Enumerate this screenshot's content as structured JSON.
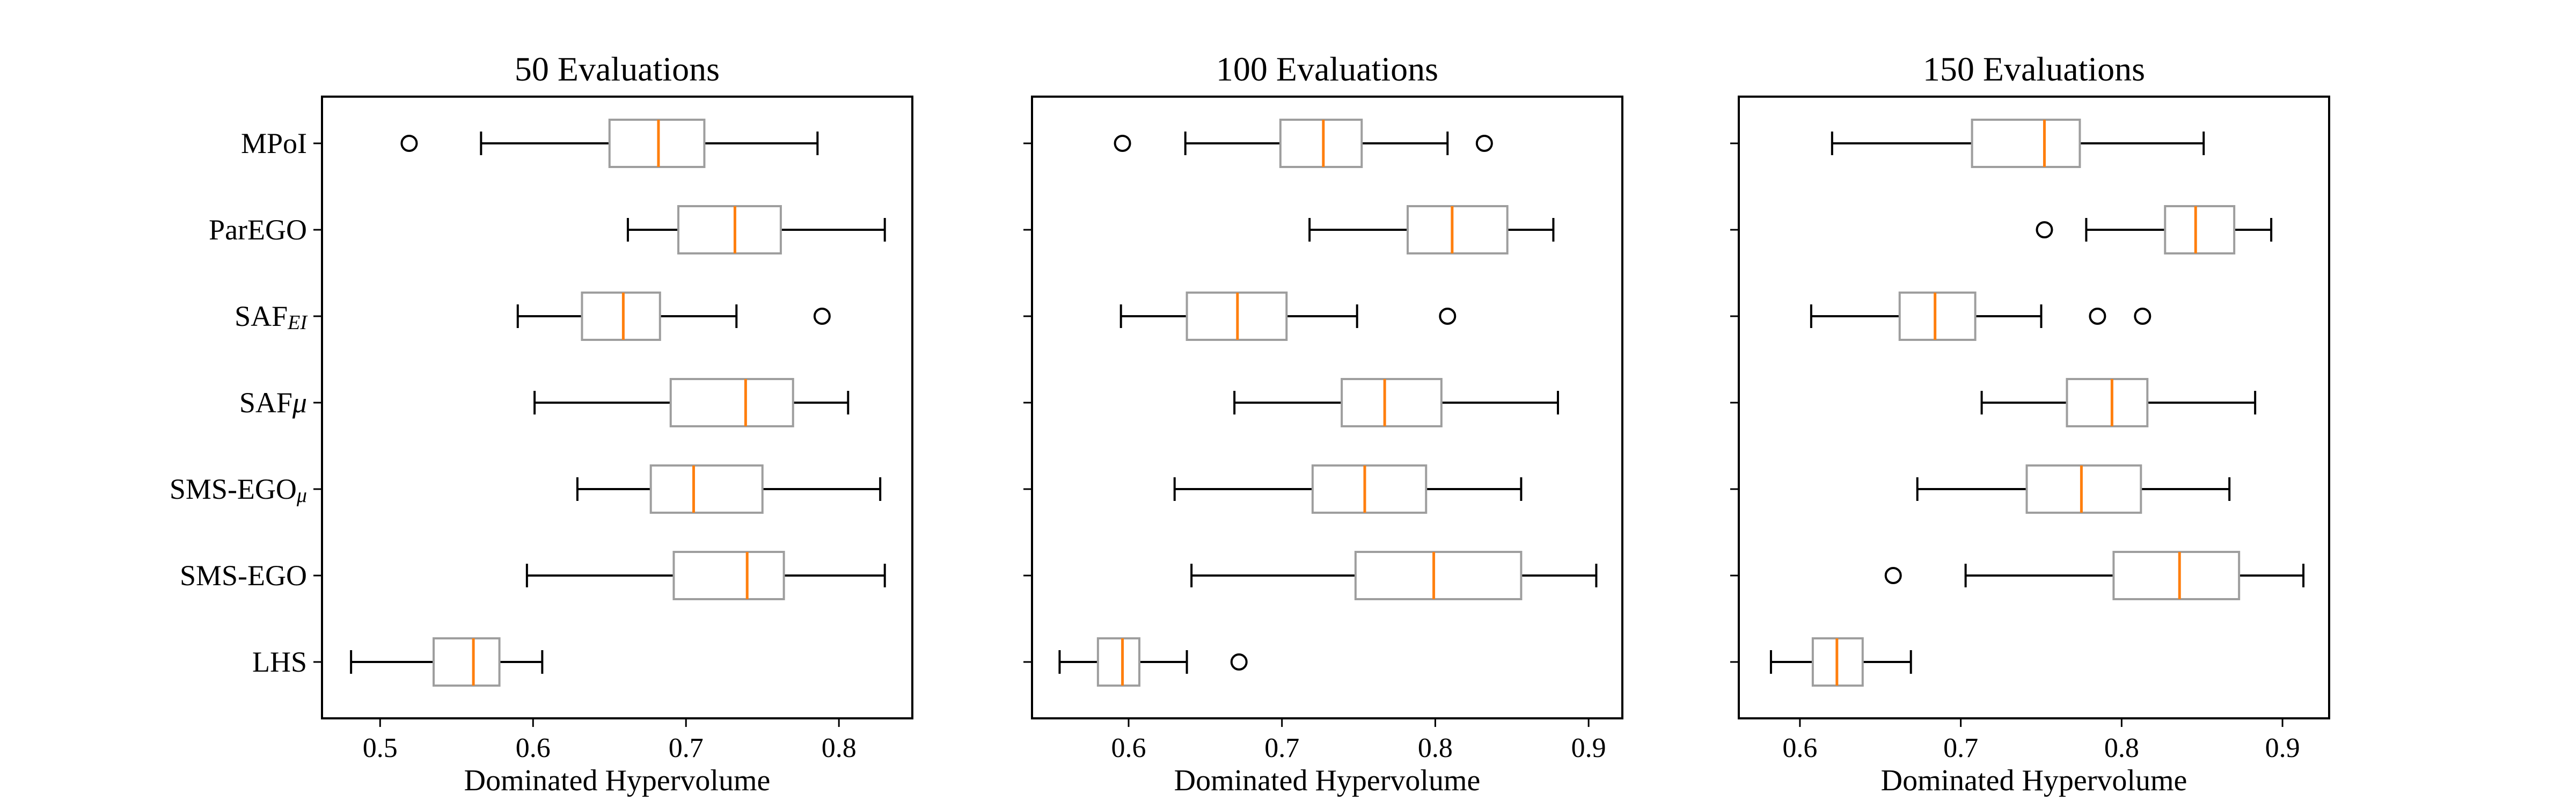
{
  "colors": {
    "box": "#9e9e9e",
    "median": "#ff7f0e",
    "whisker": "#000000",
    "frame": "#000000",
    "background": "#ffffff"
  },
  "chart_data": [
    {
      "type": "boxplot",
      "orientation": "horizontal",
      "title": "50 Evaluations",
      "xlabel": "Dominated Hypervolume",
      "xlim": [
        0.462,
        0.848
      ],
      "xticks": [
        0.5,
        0.6,
        0.7,
        0.8
      ],
      "xtick_labels": [
        "0.5",
        "0.6",
        "0.7",
        "0.8"
      ],
      "series": [
        {
          "name": "MPoI",
          "whisker_low": 0.566,
          "q1": 0.65,
          "median": 0.682,
          "q3": 0.712,
          "whisker_high": 0.786,
          "outliers": [
            0.519
          ]
        },
        {
          "name": "ParEGO",
          "whisker_low": 0.662,
          "q1": 0.695,
          "median": 0.732,
          "q3": 0.762,
          "whisker_high": 0.83,
          "outliers": []
        },
        {
          "name": "SAF_EI",
          "whisker_low": 0.59,
          "q1": 0.632,
          "median": 0.659,
          "q3": 0.683,
          "whisker_high": 0.733,
          "outliers": [
            0.789
          ]
        },
        {
          "name": "SAFμ",
          "whisker_low": 0.601,
          "q1": 0.69,
          "median": 0.739,
          "q3": 0.77,
          "whisker_high": 0.806,
          "outliers": []
        },
        {
          "name": "SMS-EGO_μ",
          "whisker_low": 0.629,
          "q1": 0.677,
          "median": 0.705,
          "q3": 0.75,
          "whisker_high": 0.827,
          "outliers": []
        },
        {
          "name": "SMS-EGO",
          "whisker_low": 0.596,
          "q1": 0.692,
          "median": 0.74,
          "q3": 0.764,
          "whisker_high": 0.83,
          "outliers": []
        },
        {
          "name": "LHS",
          "whisker_low": 0.481,
          "q1": 0.535,
          "median": 0.561,
          "q3": 0.578,
          "whisker_high": 0.606,
          "outliers": []
        }
      ]
    },
    {
      "type": "boxplot",
      "orientation": "horizontal",
      "title": "100 Evaluations",
      "xlabel": "Dominated Hypervolume",
      "xlim": [
        0.537,
        0.922
      ],
      "xticks": [
        0.6,
        0.7,
        0.8,
        0.9
      ],
      "xtick_labels": [
        "0.6",
        "0.7",
        "0.8",
        "0.9"
      ],
      "series": [
        {
          "name": "MPoI",
          "whisker_low": 0.637,
          "q1": 0.699,
          "median": 0.727,
          "q3": 0.752,
          "whisker_high": 0.808,
          "outliers": [
            0.596,
            0.832
          ]
        },
        {
          "name": "ParEGO",
          "whisker_low": 0.718,
          "q1": 0.782,
          "median": 0.811,
          "q3": 0.847,
          "whisker_high": 0.877,
          "outliers": []
        },
        {
          "name": "SAF_EI",
          "whisker_low": 0.595,
          "q1": 0.638,
          "median": 0.671,
          "q3": 0.703,
          "whisker_high": 0.749,
          "outliers": [
            0.808
          ]
        },
        {
          "name": "SAFμ",
          "whisker_low": 0.669,
          "q1": 0.739,
          "median": 0.767,
          "q3": 0.804,
          "whisker_high": 0.88,
          "outliers": []
        },
        {
          "name": "SMS-EGO_μ",
          "whisker_low": 0.63,
          "q1": 0.72,
          "median": 0.754,
          "q3": 0.794,
          "whisker_high": 0.856,
          "outliers": []
        },
        {
          "name": "SMS-EGO",
          "whisker_low": 0.641,
          "q1": 0.748,
          "median": 0.799,
          "q3": 0.856,
          "whisker_high": 0.905,
          "outliers": []
        },
        {
          "name": "LHS",
          "whisker_low": 0.555,
          "q1": 0.58,
          "median": 0.596,
          "q3": 0.607,
          "whisker_high": 0.638,
          "outliers": [
            0.672
          ]
        }
      ]
    },
    {
      "type": "boxplot",
      "orientation": "horizontal",
      "title": "150 Evaluations",
      "xlabel": "Dominated Hypervolume",
      "xlim": [
        0.562,
        0.929
      ],
      "xticks": [
        0.6,
        0.7,
        0.8,
        0.9
      ],
      "xtick_labels": [
        "0.6",
        "0.7",
        "0.8",
        "0.9"
      ],
      "series": [
        {
          "name": "MPoI",
          "whisker_low": 0.62,
          "q1": 0.707,
          "median": 0.752,
          "q3": 0.774,
          "whisker_high": 0.851,
          "outliers": []
        },
        {
          "name": "ParEGO",
          "whisker_low": 0.778,
          "q1": 0.827,
          "median": 0.846,
          "q3": 0.87,
          "whisker_high": 0.893,
          "outliers": [
            0.752
          ]
        },
        {
          "name": "SAF_EI",
          "whisker_low": 0.607,
          "q1": 0.662,
          "median": 0.684,
          "q3": 0.709,
          "whisker_high": 0.75,
          "outliers": [
            0.785,
            0.813
          ]
        },
        {
          "name": "SAFμ",
          "whisker_low": 0.713,
          "q1": 0.766,
          "median": 0.794,
          "q3": 0.816,
          "whisker_high": 0.883,
          "outliers": []
        },
        {
          "name": "SMS-EGO_μ",
          "whisker_low": 0.673,
          "q1": 0.741,
          "median": 0.775,
          "q3": 0.812,
          "whisker_high": 0.867,
          "outliers": []
        },
        {
          "name": "SMS-EGO",
          "whisker_low": 0.703,
          "q1": 0.795,
          "median": 0.836,
          "q3": 0.873,
          "whisker_high": 0.913,
          "outliers": [
            0.658
          ]
        },
        {
          "name": "LHS",
          "whisker_low": 0.582,
          "q1": 0.608,
          "median": 0.623,
          "q3": 0.639,
          "whisker_high": 0.669,
          "outliers": []
        }
      ]
    }
  ]
}
